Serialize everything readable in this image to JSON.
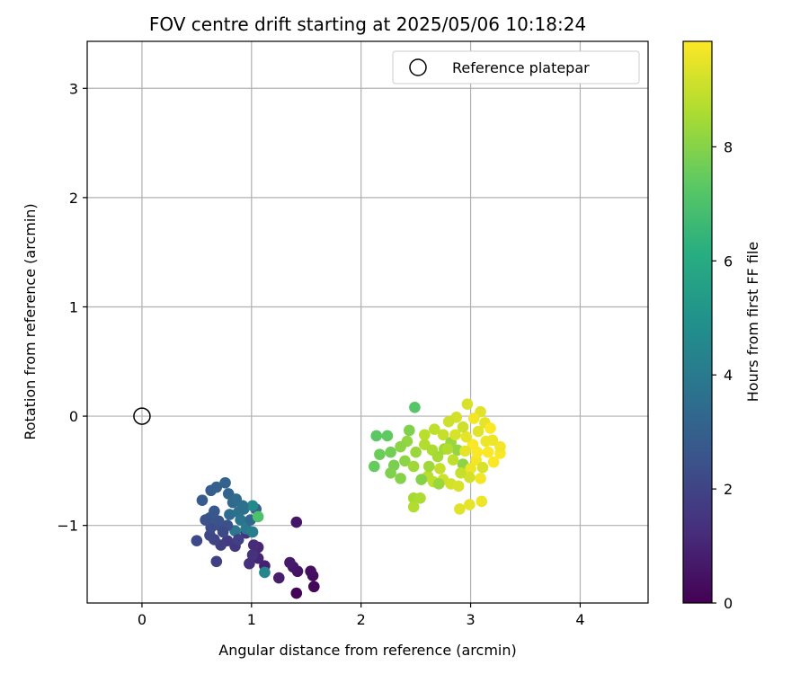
{
  "chart_data": {
    "type": "scatter",
    "title": "FOV centre drift starting at 2025/05/06 10:18:24",
    "xlabel": "Angular distance from reference (arcmin)",
    "ylabel": "Rotation from reference (arcmin)",
    "colorbar_label": "Hours from first FF file",
    "xlim": [
      -0.5,
      4.62
    ],
    "ylim": [
      -1.71,
      3.43
    ],
    "xticks": [
      0,
      1,
      2,
      3,
      4
    ],
    "yticks": [
      3,
      2,
      1,
      0,
      -1
    ],
    "ytick_labels": [
      "3",
      "2",
      "1",
      "0",
      "−1"
    ],
    "colorbar_range": [
      0,
      9.85
    ],
    "colorbar_ticks": [
      0,
      2,
      4,
      6,
      8
    ],
    "colormap": "viridis",
    "grid": true,
    "legend": {
      "position": "top-right",
      "entries": [
        "Reference platepar"
      ]
    },
    "reference_point": {
      "x": 0,
      "y": 0
    },
    "points": [
      {
        "x": 1.41,
        "y": -1.62,
        "c": 0.1
      },
      {
        "x": 1.57,
        "y": -1.56,
        "c": 0.2
      },
      {
        "x": 1.56,
        "y": -1.46,
        "c": 0.3
      },
      {
        "x": 1.54,
        "y": -1.42,
        "c": 0.4
      },
      {
        "x": 1.42,
        "y": -1.42,
        "c": 0.5
      },
      {
        "x": 1.38,
        "y": -1.38,
        "c": 0.6
      },
      {
        "x": 1.35,
        "y": -1.34,
        "c": 0.7
      },
      {
        "x": 1.41,
        "y": -0.97,
        "c": 0.6
      },
      {
        "x": 1.25,
        "y": -1.48,
        "c": 0.8
      },
      {
        "x": 1.12,
        "y": -1.37,
        "c": 0.9
      },
      {
        "x": 1.06,
        "y": -1.3,
        "c": 1.0
      },
      {
        "x": 1.06,
        "y": -1.2,
        "c": 1.1
      },
      {
        "x": 1.02,
        "y": -1.18,
        "c": 1.2
      },
      {
        "x": 0.98,
        "y": -1.35,
        "c": 1.3
      },
      {
        "x": 1.01,
        "y": -1.27,
        "c": 1.4
      },
      {
        "x": 0.95,
        "y": -1.07,
        "c": 1.5
      },
      {
        "x": 0.85,
        "y": -1.19,
        "c": 1.6
      },
      {
        "x": 0.78,
        "y": -1.14,
        "c": 1.7
      },
      {
        "x": 0.72,
        "y": -1.18,
        "c": 1.8
      },
      {
        "x": 0.68,
        "y": -1.33,
        "c": 1.9
      },
      {
        "x": 0.66,
        "y": -1.13,
        "c": 2.0
      },
      {
        "x": 0.62,
        "y": -1.09,
        "c": 2.1
      },
      {
        "x": 0.5,
        "y": -1.14,
        "c": 2.2
      },
      {
        "x": 0.63,
        "y": -1.02,
        "c": 2.3
      },
      {
        "x": 0.72,
        "y": -1.01,
        "c": 2.4
      },
      {
        "x": 0.7,
        "y": -0.96,
        "c": 2.5
      },
      {
        "x": 0.62,
        "y": -0.93,
        "c": 2.6
      },
      {
        "x": 0.66,
        "y": -0.87,
        "c": 2.7
      },
      {
        "x": 0.55,
        "y": -0.77,
        "c": 2.8
      },
      {
        "x": 0.63,
        "y": -0.68,
        "c": 2.9
      },
      {
        "x": 0.68,
        "y": -0.65,
        "c": 3.0
      },
      {
        "x": 0.76,
        "y": -0.61,
        "c": 3.1
      },
      {
        "x": 0.79,
        "y": -0.71,
        "c": 3.2
      },
      {
        "x": 0.83,
        "y": -0.79,
        "c": 3.3
      },
      {
        "x": 0.86,
        "y": -0.76,
        "c": 3.4
      },
      {
        "x": 0.8,
        "y": -0.9,
        "c": 3.5
      },
      {
        "x": 0.88,
        "y": -0.88,
        "c": 3.6
      },
      {
        "x": 0.93,
        "y": -0.85,
        "c": 3.7
      },
      {
        "x": 0.9,
        "y": -0.95,
        "c": 3.8
      },
      {
        "x": 0.85,
        "y": -1.05,
        "c": 3.9
      },
      {
        "x": 0.78,
        "y": -1.0,
        "c": 2.4
      },
      {
        "x": 0.95,
        "y": -1.03,
        "c": 4.0
      },
      {
        "x": 1.01,
        "y": -1.06,
        "c": 4.2
      },
      {
        "x": 0.99,
        "y": -0.95,
        "c": 3.3
      },
      {
        "x": 1.04,
        "y": -0.85,
        "c": 3.0
      },
      {
        "x": 1.01,
        "y": -0.82,
        "c": 4.6
      },
      {
        "x": 1.12,
        "y": -1.43,
        "c": 4.5
      },
      {
        "x": 1.06,
        "y": -0.92,
        "c": 7.0
      },
      {
        "x": 0.74,
        "y": -1.06,
        "c": 2.2
      },
      {
        "x": 0.58,
        "y": -0.95,
        "c": 2.5
      },
      {
        "x": 0.88,
        "y": -1.13,
        "c": 1.9
      },
      {
        "x": 0.92,
        "y": -0.82,
        "c": 3.6
      },
      {
        "x": 2.49,
        "y": 0.08,
        "c": 7.2
      },
      {
        "x": 2.14,
        "y": -0.18,
        "c": 7.3
      },
      {
        "x": 2.24,
        "y": -0.18,
        "c": 7.4
      },
      {
        "x": 2.12,
        "y": -0.46,
        "c": 7.5
      },
      {
        "x": 2.17,
        "y": -0.35,
        "c": 7.6
      },
      {
        "x": 2.27,
        "y": -0.33,
        "c": 7.7
      },
      {
        "x": 2.3,
        "y": -0.45,
        "c": 7.8
      },
      {
        "x": 2.27,
        "y": -0.52,
        "c": 7.9
      },
      {
        "x": 2.36,
        "y": -0.57,
        "c": 8.0
      },
      {
        "x": 2.4,
        "y": -0.41,
        "c": 8.1
      },
      {
        "x": 2.42,
        "y": -0.23,
        "c": 8.2
      },
      {
        "x": 2.5,
        "y": -0.33,
        "c": 8.3
      },
      {
        "x": 2.48,
        "y": -0.46,
        "c": 8.4
      },
      {
        "x": 2.48,
        "y": -0.75,
        "c": 8.5
      },
      {
        "x": 2.54,
        "y": -0.75,
        "c": 8.6
      },
      {
        "x": 2.48,
        "y": -0.83,
        "c": 8.7
      },
      {
        "x": 2.61,
        "y": -0.55,
        "c": 8.8
      },
      {
        "x": 2.66,
        "y": -0.6,
        "c": 8.9
      },
      {
        "x": 2.72,
        "y": -0.48,
        "c": 9.0
      },
      {
        "x": 2.75,
        "y": -0.58,
        "c": 9.1
      },
      {
        "x": 2.82,
        "y": -0.62,
        "c": 9.2
      },
      {
        "x": 2.89,
        "y": -0.64,
        "c": 9.3
      },
      {
        "x": 2.9,
        "y": -0.85,
        "c": 9.4
      },
      {
        "x": 2.99,
        "y": -0.81,
        "c": 9.5
      },
      {
        "x": 3.1,
        "y": -0.78,
        "c": 9.6
      },
      {
        "x": 3.09,
        "y": -0.57,
        "c": 9.7
      },
      {
        "x": 3.21,
        "y": -0.42,
        "c": 9.8
      },
      {
        "x": 3.27,
        "y": -0.34,
        "c": 9.8
      },
      {
        "x": 3.27,
        "y": -0.28,
        "c": 9.7
      },
      {
        "x": 3.2,
        "y": -0.22,
        "c": 9.6
      },
      {
        "x": 3.13,
        "y": -0.06,
        "c": 9.5
      },
      {
        "x": 3.09,
        "y": 0.04,
        "c": 9.4
      },
      {
        "x": 2.97,
        "y": 0.11,
        "c": 9.3
      },
      {
        "x": 2.87,
        "y": -0.01,
        "c": 9.2
      },
      {
        "x": 2.8,
        "y": -0.05,
        "c": 9.1
      },
      {
        "x": 2.75,
        "y": -0.17,
        "c": 9.0
      },
      {
        "x": 2.67,
        "y": -0.12,
        "c": 8.9
      },
      {
        "x": 2.58,
        "y": -0.17,
        "c": 8.8
      },
      {
        "x": 2.58,
        "y": -0.26,
        "c": 8.7
      },
      {
        "x": 2.65,
        "y": -0.31,
        "c": 8.6
      },
      {
        "x": 2.7,
        "y": -0.37,
        "c": 8.5
      },
      {
        "x": 2.76,
        "y": -0.3,
        "c": 8.4
      },
      {
        "x": 2.82,
        "y": -0.24,
        "c": 8.3
      },
      {
        "x": 2.88,
        "y": -0.31,
        "c": 8.2
      },
      {
        "x": 2.93,
        "y": -0.44,
        "c": 8.1
      },
      {
        "x": 3.0,
        "y": -0.48,
        "c": 9.6
      },
      {
        "x": 3.05,
        "y": -0.4,
        "c": 9.7
      },
      {
        "x": 3.02,
        "y": -0.26,
        "c": 9.8
      },
      {
        "x": 2.96,
        "y": -0.19,
        "c": 9.5
      },
      {
        "x": 3.07,
        "y": -0.14,
        "c": 9.4
      },
      {
        "x": 3.14,
        "y": -0.23,
        "c": 9.6
      },
      {
        "x": 3.16,
        "y": -0.33,
        "c": 9.8
      },
      {
        "x": 3.11,
        "y": -0.47,
        "c": 9.3
      },
      {
        "x": 2.99,
        "y": -0.56,
        "c": 9.2
      },
      {
        "x": 2.91,
        "y": -0.52,
        "c": 9.0
      },
      {
        "x": 2.84,
        "y": -0.4,
        "c": 8.9
      },
      {
        "x": 2.79,
        "y": -0.3,
        "c": 8.7
      },
      {
        "x": 2.93,
        "y": -0.1,
        "c": 9.1
      },
      {
        "x": 3.03,
        "y": -0.02,
        "c": 9.7
      },
      {
        "x": 3.18,
        "y": -0.11,
        "c": 9.8
      },
      {
        "x": 2.62,
        "y": -0.46,
        "c": 8.4
      },
      {
        "x": 2.55,
        "y": -0.58,
        "c": 8.0
      },
      {
        "x": 2.44,
        "y": -0.13,
        "c": 7.9
      },
      {
        "x": 2.36,
        "y": -0.28,
        "c": 8.1
      },
      {
        "x": 2.71,
        "y": -0.62,
        "c": 8.3
      },
      {
        "x": 2.86,
        "y": -0.17,
        "c": 9.3
      },
      {
        "x": 2.95,
        "y": -0.32,
        "c": 9.5
      },
      {
        "x": 3.06,
        "y": -0.33,
        "c": 9.8
      }
    ]
  }
}
